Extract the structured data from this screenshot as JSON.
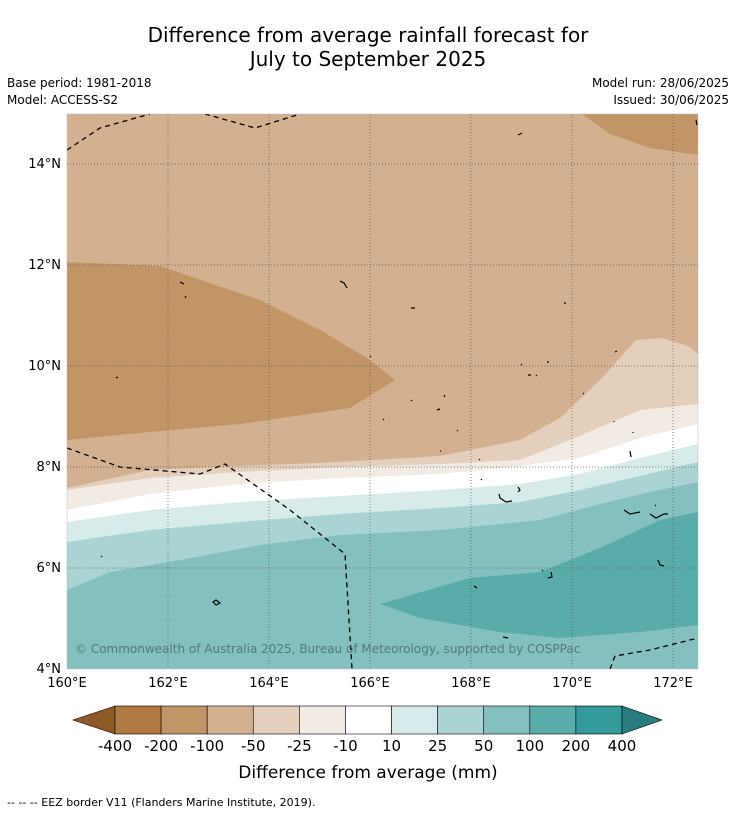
{
  "title": {
    "line1": "Difference from average rainfall forecast for",
    "line2": "July to September 2025"
  },
  "meta": {
    "base_period": "Base period: 1981-2018",
    "model": "Model: ACCESS-S2",
    "model_run": "Model run: 28/06/2025",
    "issued": "Issued: 30/06/2025"
  },
  "map": {
    "lat_ticks": [
      "14°N",
      "12°N",
      "10°N",
      "8°N",
      "6°N",
      "4°N"
    ],
    "lon_ticks": [
      "160°E",
      "162°E",
      "164°E",
      "166°E",
      "168°E",
      "170°E",
      "172°E"
    ],
    "copyright": "© Commonwealth of Australia 2025, Bureau of Meteorology, supported by COSPPac",
    "extent": {
      "lon": [
        160,
        172.5
      ],
      "lat": [
        4,
        15
      ]
    }
  },
  "colorbar": {
    "labels": [
      "-400",
      "-200",
      "-100",
      "-50",
      "-25",
      "-10",
      "10",
      "25",
      "50",
      "100",
      "200",
      "400"
    ],
    "colors": [
      "#8e5a2a",
      "#b07a45",
      "#c29567",
      "#d3b08f",
      "#e4cfbd",
      "#f2ebe4",
      "#ffffff",
      "#d6ebea",
      "#a9d4d3",
      "#84c0bf",
      "#5aacab",
      "#34999a",
      "#2a7d7e"
    ],
    "label": "Difference from average (mm)"
  },
  "footer": "--  --  -- EEZ border V11 (Flanders Marine Institute, 2019)."
}
